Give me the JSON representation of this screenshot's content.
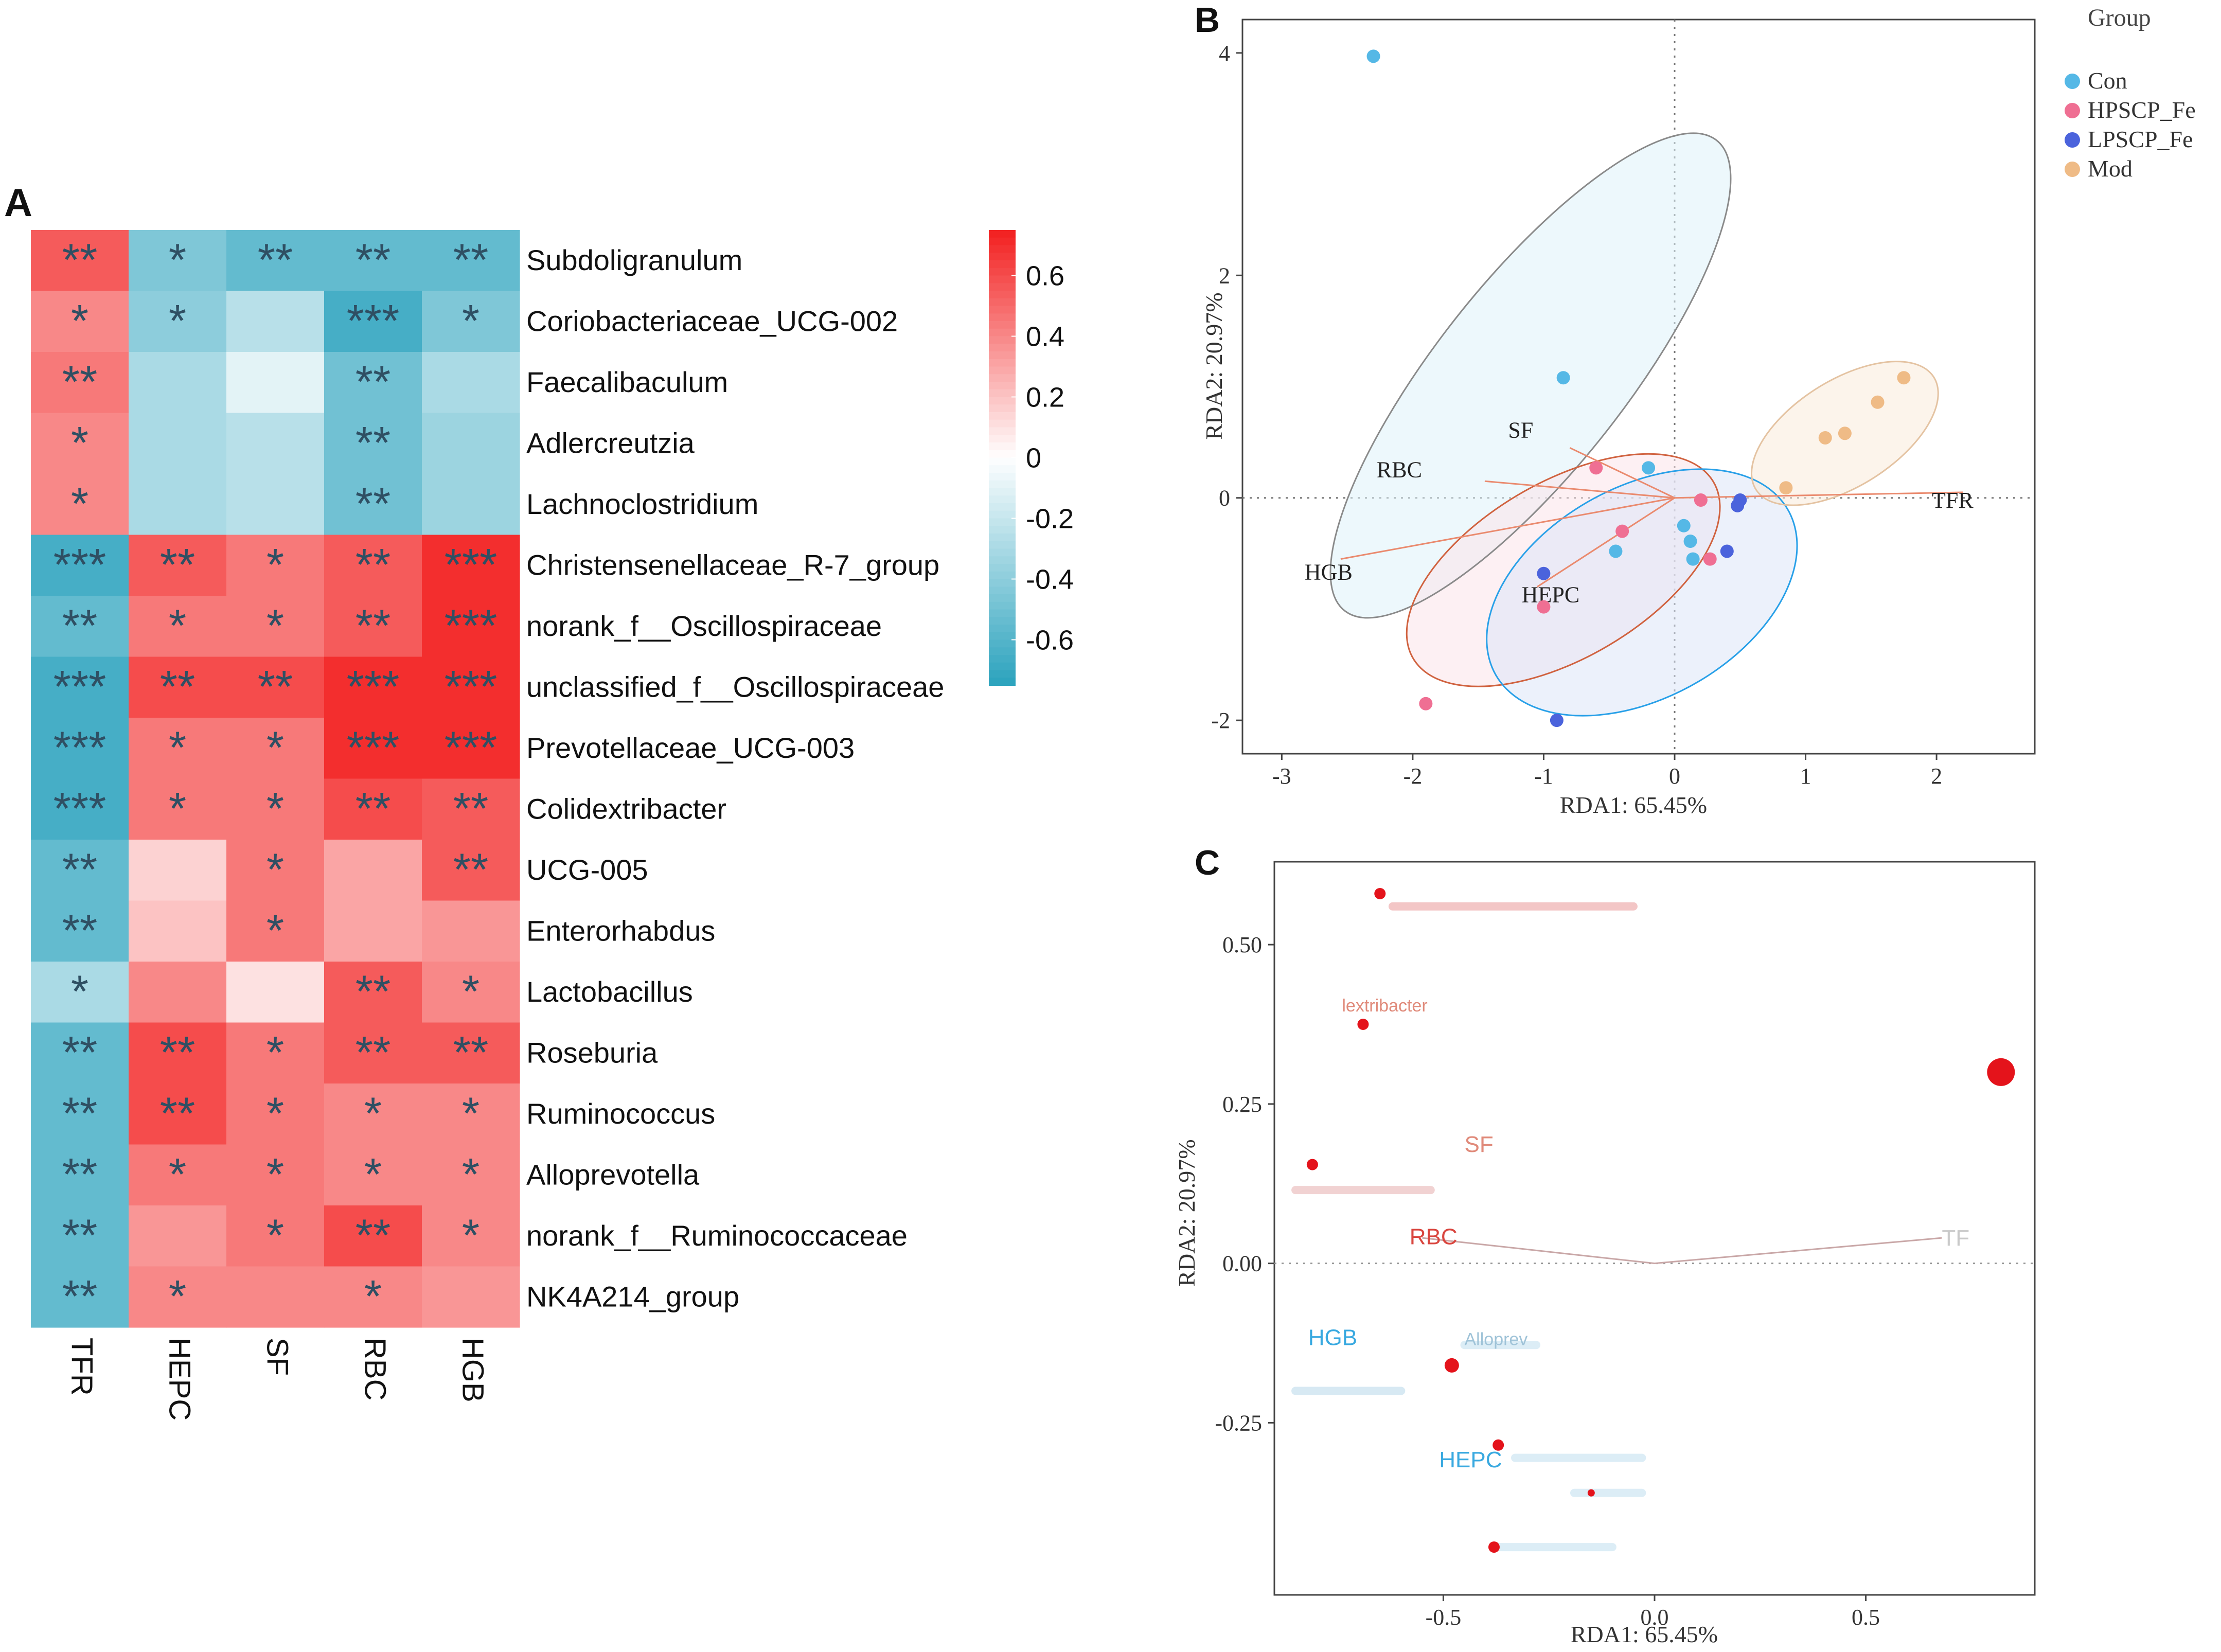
{
  "panels": {
    "a": "A",
    "b": "B",
    "c": "C"
  },
  "colors": {
    "high": "#f21f1f",
    "mid": "#ffffff",
    "low": "#2aa2bd",
    "star": "#2f4f63"
  },
  "chart_data": [
    {
      "type": "heatmap",
      "panel": "A",
      "title": "",
      "columns": [
        "TFR",
        "HEPC",
        "SF",
        "RBC",
        "HGB"
      ],
      "rows": [
        "Subdoligranulum",
        "Coriobacteriaceae_UCG-002",
        "Faecalibaculum",
        "Adlercreutzia",
        "Lachnoclostridium",
        "Christensenellaceae_R-7_group",
        "norank_f__Oscillospiraceae",
        "unclassified_f__Oscillospiraceae",
        "Prevotellaceae_UCG-003",
        "Colidextribacter",
        "UCG-005",
        "Enterorhabdus",
        "Lactobacillus",
        "Roseburia",
        "Ruminococcus",
        "Alloprevotella",
        "norank_f__Ruminococcaceae",
        "NK4A214_group"
      ],
      "values": [
        [
          0.55,
          -0.45,
          -0.55,
          -0.55,
          -0.55
        ],
        [
          0.4,
          -0.4,
          -0.25,
          -0.65,
          -0.45
        ],
        [
          0.45,
          -0.3,
          -0.1,
          -0.5,
          -0.3
        ],
        [
          0.4,
          -0.3,
          -0.25,
          -0.5,
          -0.35
        ],
        [
          0.4,
          -0.3,
          -0.25,
          -0.5,
          -0.35
        ],
        [
          -0.65,
          0.55,
          0.45,
          0.55,
          0.7
        ],
        [
          -0.55,
          0.45,
          0.45,
          0.55,
          0.7
        ],
        [
          -0.65,
          0.6,
          0.6,
          0.7,
          0.7
        ],
        [
          -0.65,
          0.45,
          0.45,
          0.7,
          0.7
        ],
        [
          -0.65,
          0.45,
          0.45,
          0.6,
          0.55
        ],
        [
          -0.55,
          0.15,
          0.45,
          0.3,
          0.55
        ],
        [
          -0.55,
          0.2,
          0.45,
          0.3,
          0.35
        ],
        [
          -0.3,
          0.4,
          0.1,
          0.55,
          0.4
        ],
        [
          -0.55,
          0.6,
          0.45,
          0.55,
          0.55
        ],
        [
          -0.55,
          0.6,
          0.45,
          0.4,
          0.4
        ],
        [
          -0.55,
          0.45,
          0.45,
          0.4,
          0.4
        ],
        [
          -0.55,
          0.35,
          0.45,
          0.6,
          0.4
        ],
        [
          -0.55,
          0.4,
          0.4,
          0.4,
          0.35
        ]
      ],
      "stars": [
        [
          "**",
          "*",
          "**",
          "**",
          "**"
        ],
        [
          "*",
          "*",
          "",
          "***",
          "*"
        ],
        [
          "**",
          "",
          "",
          "**",
          ""
        ],
        [
          "*",
          "",
          "",
          "**",
          ""
        ],
        [
          "*",
          "",
          "",
          "**",
          ""
        ],
        [
          "***",
          "**",
          "*",
          "**",
          "***"
        ],
        [
          "**",
          "*",
          "*",
          "**",
          "***"
        ],
        [
          "***",
          "**",
          "**",
          "***",
          "***"
        ],
        [
          "***",
          "*",
          "*",
          "***",
          "***"
        ],
        [
          "***",
          "*",
          "*",
          "**",
          "**"
        ],
        [
          "**",
          "",
          "*",
          "",
          "**"
        ],
        [
          "**",
          "",
          "*",
          "",
          ""
        ],
        [
          "*",
          "",
          "",
          "**",
          "*"
        ],
        [
          "**",
          "**",
          "*",
          "**",
          "**"
        ],
        [
          "**",
          "**",
          "*",
          "*",
          "*"
        ],
        [
          "**",
          "*",
          "*",
          "*",
          "*"
        ],
        [
          "**",
          "",
          "*",
          "**",
          "*"
        ],
        [
          "**",
          "*",
          "",
          "*",
          ""
        ]
      ],
      "colorbar": {
        "ticks": [
          0.6,
          0.4,
          0.2,
          0,
          -0.2,
          -0.4,
          -0.6
        ],
        "tick_labels": [
          "0.6",
          "0.4",
          "0.2",
          "0",
          "-0.2",
          "-0.4",
          "-0.6"
        ],
        "range": [
          -0.75,
          0.75
        ]
      }
    },
    {
      "type": "scatter",
      "panel": "B",
      "title": "",
      "xlabel": "RDA1: 65.45%",
      "ylabel": "RDA2: 20.97%",
      "xlim": [
        -3.3,
        2.75
      ],
      "ylim": [
        -2.3,
        4.3
      ],
      "xticks": [
        -3,
        -2,
        -1,
        0,
        1,
        2
      ],
      "yticks": [
        -2,
        0,
        2,
        4
      ],
      "legend_title": "Group",
      "legend_position": "top-right",
      "series": [
        {
          "name": "Con",
          "color": "#55b8e6",
          "fill": "#dff2fa",
          "stroke": "#8a8a8a",
          "points": [
            [
              -2.3,
              3.97
            ],
            [
              -0.85,
              1.08
            ],
            [
              -0.2,
              0.27
            ],
            [
              0.07,
              -0.25
            ],
            [
              0.14,
              -0.55
            ],
            [
              -0.45,
              -0.48
            ],
            [
              0.12,
              -0.39
            ]
          ],
          "ellipse": {
            "cx": -1.1,
            "cy": 1.1,
            "rx": 2.55,
            "ry": 0.76,
            "angle": 57.0
          }
        },
        {
          "name": "HPSCP_Fe",
          "color": "#ef6f93",
          "fill": "#fbe3ea",
          "stroke": "#d0623f",
          "points": [
            [
              -1.9,
              -1.85
            ],
            [
              -0.6,
              0.27
            ],
            [
              -1.0,
              -0.98
            ],
            [
              -0.4,
              -0.3
            ],
            [
              0.27,
              -0.55
            ],
            [
              0.2,
              -0.02
            ]
          ],
          "ellipse": {
            "cx": -0.85,
            "cy": -0.65,
            "rx": 1.4,
            "ry": 0.75,
            "angle": 38.0
          }
        },
        {
          "name": "LPSCP_Fe",
          "color": "#4b63dc",
          "fill": "#dde6f7",
          "stroke": "#28a0e8",
          "points": [
            [
              -0.9,
              -2.0
            ],
            [
              -1.0,
              -0.68
            ],
            [
              0.4,
              -0.48
            ],
            [
              0.5,
              -0.02
            ],
            [
              0.48,
              -0.07
            ]
          ],
          "ellipse": {
            "cx": -0.25,
            "cy": -0.85,
            "rx": 1.35,
            "ry": 0.9,
            "angle": 40.0
          }
        },
        {
          "name": "Mod",
          "color": "#efbb86",
          "fill": "#faebdb",
          "stroke": "#e4c3a2",
          "points": [
            [
              1.75,
              1.08
            ],
            [
              1.55,
              0.86
            ],
            [
              1.3,
              0.58
            ],
            [
              1.15,
              0.54
            ],
            [
              0.85,
              0.09
            ]
          ],
          "ellipse": {
            "cx": 1.3,
            "cy": 0.58,
            "rx": 0.85,
            "ry": 0.45,
            "angle": 40.0
          }
        }
      ],
      "vectors": [
        {
          "label": "TFR",
          "x": 2.2,
          "y": 0.05,
          "color": "#ea8a6e"
        },
        {
          "label": "SF",
          "x": -0.8,
          "y": 0.45,
          "color": "#ea8a6e"
        },
        {
          "label": "RBC",
          "x": -1.45,
          "y": 0.15,
          "color": "#ea8a6e"
        },
        {
          "label": "HGB",
          "x": -2.55,
          "y": -0.55,
          "color": "#ea8a6e"
        },
        {
          "label": "HEPC",
          "x": -1.05,
          "y": -0.8,
          "color": "#ea8a6e"
        }
      ]
    },
    {
      "type": "scatter",
      "panel": "C",
      "title": "",
      "xlabel": "RDA1: 65.45%",
      "ylabel": "RDA2: 20.97%",
      "xlim": [
        -0.9,
        0.9
      ],
      "ylim": [
        -0.52,
        0.63
      ],
      "xticks": [
        -0.5,
        0.0,
        0.5
      ],
      "xtick_labels": [
        "-0.5",
        "0.0",
        "0.5"
      ],
      "yticks": [
        -0.25,
        0.0,
        0.25,
        0.5
      ],
      "ytick_labels": [
        "-0.25",
        "0.00",
        "0.25",
        "0.50"
      ],
      "points": [
        {
          "x": -0.65,
          "y": 0.58,
          "size": "small"
        },
        {
          "x": -0.69,
          "y": 0.375,
          "size": "small"
        },
        {
          "x": 0.82,
          "y": 0.3,
          "size": "large"
        },
        {
          "x": -0.81,
          "y": 0.155,
          "size": "small"
        },
        {
          "x": -0.48,
          "y": -0.16,
          "size": "medium"
        },
        {
          "x": -0.37,
          "y": -0.285,
          "size": "small"
        },
        {
          "x": -0.15,
          "y": -0.36,
          "size": "tiny"
        },
        {
          "x": -0.38,
          "y": -0.445,
          "size": "small"
        }
      ],
      "labels": [
        {
          "text": "RBC",
          "x": -0.58,
          "y": 0.03,
          "color": "#d9453e"
        },
        {
          "text": "HGB",
          "x": -0.82,
          "y": -0.128,
          "color": "#39a9e0"
        },
        {
          "text": "HEPC",
          "x": -0.51,
          "y": -0.32,
          "color": "#39a9e0"
        },
        {
          "text": "lextribacter",
          "x": -0.74,
          "y": 0.395,
          "color": "#e08a7a"
        },
        {
          "text": "Alloprev",
          "x": -0.45,
          "y": -0.128,
          "color": "#9fc3d8"
        },
        {
          "text": "SF",
          "x": -0.45,
          "y": 0.175,
          "color": "#e08a7a"
        },
        {
          "text": "TF",
          "x": 0.68,
          "y": 0.028,
          "color": "#c9c9c9"
        }
      ]
    }
  ]
}
